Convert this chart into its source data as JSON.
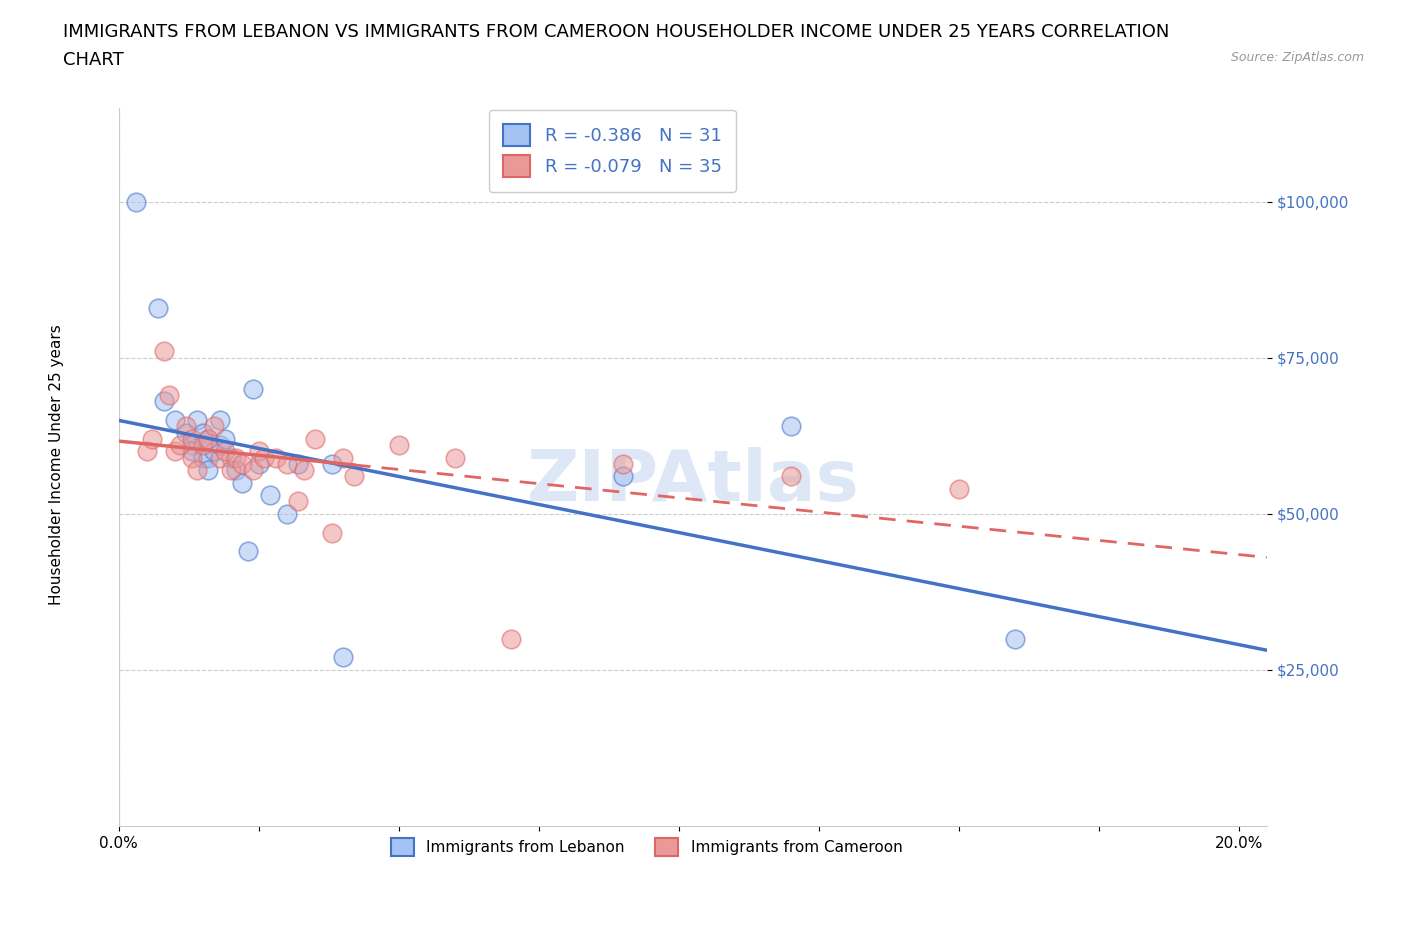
{
  "title_line1": "IMMIGRANTS FROM LEBANON VS IMMIGRANTS FROM CAMEROON HOUSEHOLDER INCOME UNDER 25 YEARS CORRELATION",
  "title_line2": "CHART",
  "source_text": "Source: ZipAtlas.com",
  "ylabel": "Householder Income Under 25 years",
  "xlabel": "",
  "xlim": [
    0,
    0.205
  ],
  "ylim": [
    0,
    115000
  ],
  "yticks": [
    25000,
    50000,
    75000,
    100000
  ],
  "ytick_labels": [
    "$25,000",
    "$50,000",
    "$75,000",
    "$100,000"
  ],
  "xticks": [
    0.0,
    0.025,
    0.05,
    0.075,
    0.1,
    0.125,
    0.15,
    0.175,
    0.2
  ],
  "xtick_labels": [
    "0.0%",
    "",
    "",
    "",
    "",
    "",
    "",
    "",
    "20.0%"
  ],
  "r_lebanon": -0.386,
  "n_lebanon": 31,
  "r_cameroon": -0.079,
  "n_cameroon": 35,
  "color_lebanon": "#a4c2f4",
  "color_cameroon": "#ea9999",
  "color_lebanon_line": "#4472c4",
  "color_cameroon_line": "#e06666",
  "color_text_blue": "#4472c4",
  "color_grid_dashed": "#cccccc",
  "color_grid_light": "#e0e0e0",
  "background_color": "#ffffff",
  "watermark_text": "ZIPAtlas",
  "watermark_color": "#c8d8f0",
  "lebanon_x": [
    0.003,
    0.007,
    0.008,
    0.01,
    0.012,
    0.013,
    0.013,
    0.014,
    0.015,
    0.015,
    0.016,
    0.016,
    0.016,
    0.017,
    0.018,
    0.018,
    0.019,
    0.02,
    0.021,
    0.022,
    0.023,
    0.024,
    0.025,
    0.027,
    0.03,
    0.032,
    0.038,
    0.04,
    0.09,
    0.12,
    0.16
  ],
  "lebanon_y": [
    100000,
    83000,
    68000,
    65000,
    63000,
    61000,
    60000,
    65000,
    63000,
    59000,
    62000,
    59000,
    57000,
    60000,
    61000,
    65000,
    62000,
    59000,
    57000,
    55000,
    44000,
    70000,
    58000,
    53000,
    50000,
    58000,
    58000,
    27000,
    56000,
    64000,
    30000
  ],
  "cameroon_x": [
    0.005,
    0.006,
    0.008,
    0.009,
    0.01,
    0.011,
    0.012,
    0.013,
    0.013,
    0.014,
    0.015,
    0.016,
    0.017,
    0.018,
    0.019,
    0.02,
    0.021,
    0.022,
    0.024,
    0.025,
    0.026,
    0.028,
    0.03,
    0.032,
    0.033,
    0.035,
    0.038,
    0.04,
    0.042,
    0.05,
    0.06,
    0.07,
    0.09,
    0.12,
    0.15
  ],
  "cameroon_y": [
    60000,
    62000,
    76000,
    69000,
    60000,
    61000,
    64000,
    62000,
    59000,
    57000,
    61000,
    62000,
    64000,
    59000,
    60000,
    57000,
    59000,
    58000,
    57000,
    60000,
    59000,
    59000,
    58000,
    52000,
    57000,
    62000,
    47000,
    59000,
    56000,
    61000,
    59000,
    30000,
    58000,
    56000,
    54000
  ],
  "title_fontsize": 13,
  "axis_label_fontsize": 11,
  "tick_fontsize": 11,
  "legend_fontsize": 13,
  "scatter_size": 180,
  "alpha_scatter": 0.55
}
